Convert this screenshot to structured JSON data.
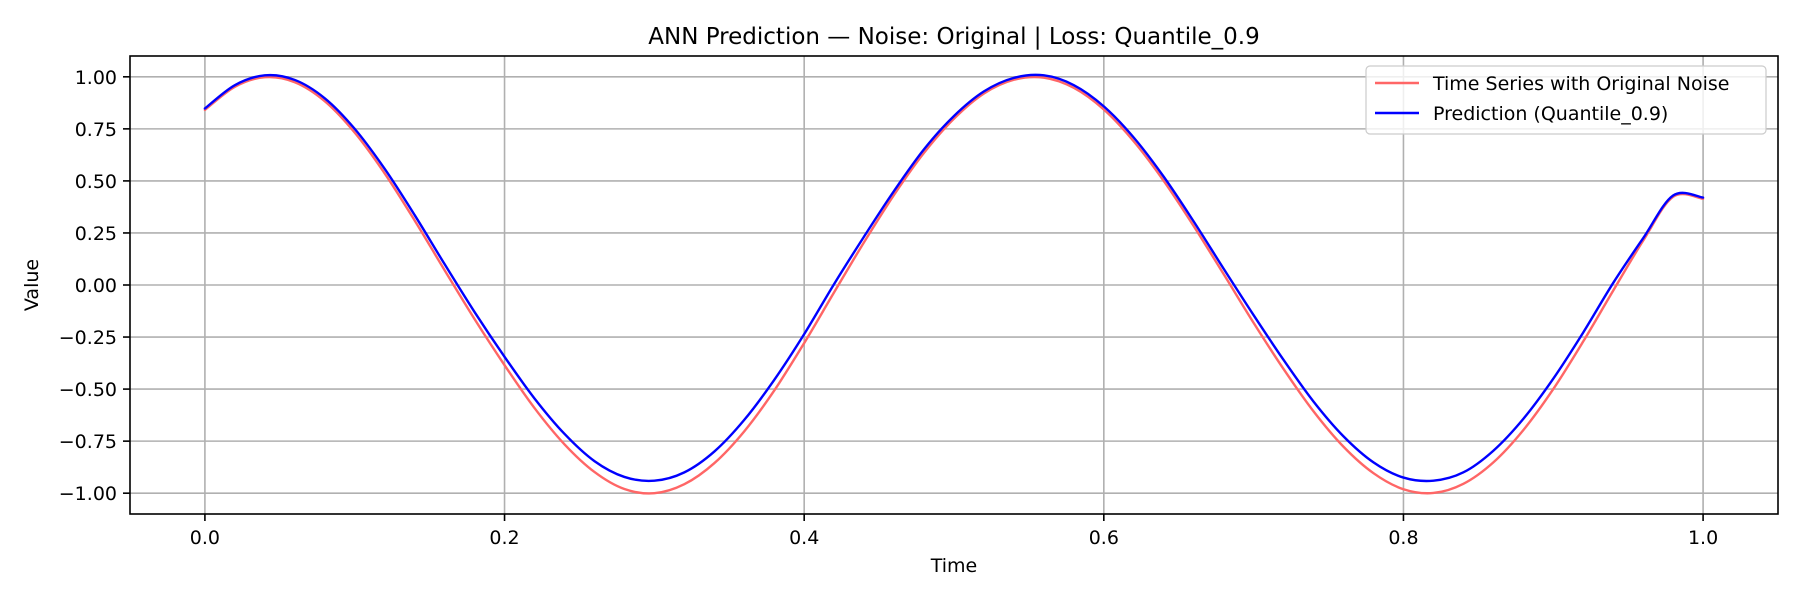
{
  "chart_data": {
    "type": "line",
    "title": "ANN Prediction — Noise: Original | Loss: Quantile_0.9",
    "xlabel": "Time",
    "ylabel": "Value",
    "xlim": [
      -0.05,
      1.05
    ],
    "ylim": [
      -1.1,
      1.1
    ],
    "xticks": [
      0.0,
      0.2,
      0.4,
      0.6,
      0.8,
      1.0
    ],
    "xtick_labels": [
      "0.0",
      "0.2",
      "0.4",
      "0.6",
      "0.8",
      "1.0"
    ],
    "yticks": [
      1.0,
      0.75,
      0.5,
      0.25,
      0.0,
      -0.25,
      -0.5,
      -0.75,
      -1.0
    ],
    "ytick_labels": [
      "1.00",
      "0.75",
      "0.50",
      "0.25",
      "0.00",
      "−0.25",
      "−0.50",
      "−0.75",
      "−1.00"
    ],
    "grid": true,
    "legend_position": "top-right",
    "series": [
      {
        "name": "Time Series with Original Noise",
        "color": "#ff6666",
        "x": [
          0.0,
          0.02,
          0.04,
          0.06,
          0.08,
          0.1,
          0.12,
          0.14,
          0.16,
          0.18,
          0.2,
          0.22,
          0.24,
          0.26,
          0.28,
          0.3,
          0.32,
          0.34,
          0.36,
          0.38,
          0.4,
          0.42,
          0.44,
          0.46,
          0.48,
          0.5,
          0.52,
          0.54,
          0.56,
          0.58,
          0.6,
          0.62,
          0.64,
          0.66,
          0.68,
          0.7,
          0.72,
          0.74,
          0.76,
          0.78,
          0.8,
          0.82,
          0.84,
          0.86,
          0.88,
          0.9,
          0.92,
          0.94,
          0.96,
          0.98,
          1.0
        ],
        "y": [
          0.841,
          0.952,
          0.998,
          0.974,
          0.883,
          0.732,
          0.536,
          0.31,
          0.071,
          -0.164,
          -0.385,
          -0.591,
          -0.765,
          -0.898,
          -0.98,
          -1.0,
          -0.957,
          -0.856,
          -0.703,
          -0.507,
          -0.279,
          -0.035,
          0.206,
          0.433,
          0.635,
          0.799,
          0.92,
          0.986,
          0.996,
          0.947,
          0.843,
          0.69,
          0.5,
          0.283,
          0.052,
          -0.182,
          -0.404,
          -0.607,
          -0.777,
          -0.904,
          -0.981,
          -0.999,
          -0.955,
          -0.852,
          -0.697,
          -0.5,
          -0.271,
          -0.027,
          0.213,
          0.424,
          0.414
        ]
      },
      {
        "name": "Prediction (Quantile_0.9)",
        "color": "#0000ff",
        "x": [
          0.0,
          0.02,
          0.04,
          0.06,
          0.08,
          0.1,
          0.12,
          0.14,
          0.16,
          0.18,
          0.2,
          0.22,
          0.24,
          0.26,
          0.28,
          0.3,
          0.32,
          0.34,
          0.36,
          0.38,
          0.4,
          0.42,
          0.44,
          0.46,
          0.48,
          0.5,
          0.52,
          0.54,
          0.56,
          0.58,
          0.6,
          0.62,
          0.64,
          0.66,
          0.68,
          0.7,
          0.72,
          0.74,
          0.76,
          0.78,
          0.8,
          0.82,
          0.84,
          0.86,
          0.88,
          0.9,
          0.92,
          0.94,
          0.96,
          0.98,
          1.0
        ],
        "y": [
          0.848,
          0.96,
          1.007,
          0.985,
          0.897,
          0.75,
          0.558,
          0.336,
          0.1,
          -0.13,
          -0.345,
          -0.545,
          -0.715,
          -0.846,
          -0.922,
          -0.94,
          -0.9,
          -0.8,
          -0.648,
          -0.456,
          -0.236,
          0.005,
          0.233,
          0.452,
          0.652,
          0.812,
          0.93,
          0.995,
          1.007,
          0.96,
          0.858,
          0.708,
          0.52,
          0.305,
          0.078,
          -0.145,
          -0.36,
          -0.56,
          -0.727,
          -0.852,
          -0.925,
          -0.94,
          -0.9,
          -0.796,
          -0.643,
          -0.45,
          -0.228,
          0.01,
          0.225,
          0.43,
          0.42
        ]
      }
    ]
  }
}
